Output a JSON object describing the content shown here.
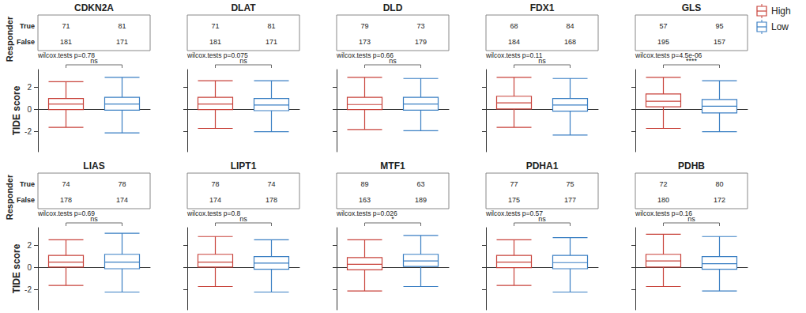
{
  "chart_data": [
    {
      "type": "boxplot",
      "title": "CDKN2A",
      "ylabel": "TIDE score",
      "ylim": [
        -3.8,
        3.6
      ],
      "yticks": [
        -2,
        0,
        2
      ],
      "grid": false,
      "tick_labels": "y",
      "series": [
        {
          "name": "High",
          "color": "#c8423a",
          "values": [
            -1.6,
            0.0,
            0.5,
            1.0,
            2.5
          ]
        },
        {
          "name": "Low",
          "color": "#3a7fc3",
          "values": [
            -2.1,
            -0.05,
            0.5,
            1.1,
            2.9
          ]
        }
      ],
      "responder": {
        "label": "Responder",
        "rows": [
          "True",
          "False"
        ],
        "counts": [
          [
            71,
            81
          ],
          [
            181,
            171
          ]
        ]
      },
      "test_label": "wilcox.tests p=0.78",
      "significance": "ns"
    },
    {
      "type": "boxplot",
      "title": "DLAT",
      "ylim": [
        -3.8,
        3.6
      ],
      "yticks": [
        -2,
        0,
        2
      ],
      "grid": false,
      "tick_labels": false,
      "series": [
        {
          "name": "High",
          "color": "#c8423a",
          "values": [
            -1.7,
            0.0,
            0.5,
            1.1,
            2.6
          ]
        },
        {
          "name": "Low",
          "color": "#3a7fc3",
          "values": [
            -2.0,
            -0.1,
            0.4,
            1.0,
            2.6
          ]
        }
      ],
      "responder": {
        "counts": [
          [
            71,
            81
          ],
          [
            181,
            171
          ]
        ]
      },
      "test_label": "wilcox.tests p=0.075",
      "significance": "ns"
    },
    {
      "type": "boxplot",
      "title": "DLD",
      "ylim": [
        -3.8,
        3.6
      ],
      "yticks": [
        -2,
        0,
        2
      ],
      "grid": false,
      "tick_labels": false,
      "series": [
        {
          "name": "High",
          "color": "#c8423a",
          "values": [
            -1.8,
            0.0,
            0.45,
            1.1,
            2.9
          ]
        },
        {
          "name": "Low",
          "color": "#3a7fc3",
          "values": [
            -1.9,
            -0.05,
            0.5,
            1.1,
            2.8
          ]
        }
      ],
      "responder": {
        "counts": [
          [
            79,
            73
          ],
          [
            173,
            179
          ]
        ]
      },
      "test_label": "wilcox.tests p=0.66",
      "significance": "ns"
    },
    {
      "type": "boxplot",
      "title": "FDX1",
      "ylim": [
        -3.8,
        3.6
      ],
      "yticks": [
        -2,
        0,
        2
      ],
      "grid": false,
      "tick_labels": false,
      "series": [
        {
          "name": "High",
          "color": "#c8423a",
          "values": [
            -1.6,
            0.05,
            0.6,
            1.2,
            2.9
          ]
        },
        {
          "name": "Low",
          "color": "#3a7fc3",
          "values": [
            -2.3,
            -0.15,
            0.4,
            1.0,
            2.8
          ]
        }
      ],
      "responder": {
        "counts": [
          [
            68,
            84
          ],
          [
            184,
            168
          ]
        ]
      },
      "test_label": "wilcox.tests p=0.11",
      "significance": "ns"
    },
    {
      "type": "boxplot",
      "title": "GLS",
      "ylim": [
        -3.8,
        3.6
      ],
      "yticks": [
        -2,
        0,
        2
      ],
      "grid": false,
      "tick_labels": false,
      "legend": "topright",
      "series": [
        {
          "name": "High",
          "color": "#c8423a",
          "values": [
            -1.7,
            0.25,
            0.75,
            1.4,
            2.9
          ]
        },
        {
          "name": "Low",
          "color": "#3a7fc3",
          "values": [
            -2.0,
            -0.3,
            0.3,
            0.9,
            2.6
          ]
        }
      ],
      "responder": {
        "counts": [
          [
            57,
            95
          ],
          [
            195,
            157
          ]
        ]
      },
      "test_label": "wilcox.tests p=4.5e-06",
      "significance": "****"
    },
    {
      "type": "boxplot",
      "title": "LIAS",
      "ylabel": "TIDE score",
      "ylim": [
        -3.8,
        3.6
      ],
      "yticks": [
        -2,
        0,
        2
      ],
      "grid": false,
      "tick_labels": "y",
      "series": [
        {
          "name": "High",
          "color": "#c8423a",
          "values": [
            -1.6,
            0.05,
            0.5,
            1.1,
            2.5
          ]
        },
        {
          "name": "Low",
          "color": "#3a7fc3",
          "values": [
            -2.2,
            -0.1,
            0.5,
            1.2,
            3.1
          ]
        }
      ],
      "responder": {
        "label": "Responder",
        "rows": [
          "True",
          "False"
        ],
        "counts": [
          [
            74,
            78
          ],
          [
            178,
            174
          ]
        ]
      },
      "test_label": "wilcox.tests p=0.69",
      "significance": "ns"
    },
    {
      "type": "boxplot",
      "title": "LIPT1",
      "ylim": [
        -3.8,
        3.6
      ],
      "yticks": [
        -2,
        0,
        2
      ],
      "grid": false,
      "tick_labels": false,
      "series": [
        {
          "name": "High",
          "color": "#c8423a",
          "values": [
            -1.7,
            0.05,
            0.5,
            1.2,
            2.8
          ]
        },
        {
          "name": "Low",
          "color": "#3a7fc3",
          "values": [
            -2.2,
            -0.15,
            0.4,
            1.0,
            2.5
          ]
        }
      ],
      "responder": {
        "counts": [
          [
            78,
            74
          ],
          [
            174,
            178
          ]
        ]
      },
      "test_label": "wilcox.tests p=0.8",
      "significance": "ns"
    },
    {
      "type": "boxplot",
      "title": "MTF1",
      "ylim": [
        -3.8,
        3.6
      ],
      "yticks": [
        -2,
        0,
        2
      ],
      "grid": false,
      "tick_labels": false,
      "series": [
        {
          "name": "High",
          "color": "#c8423a",
          "values": [
            -2.1,
            -0.2,
            0.3,
            0.9,
            2.5
          ]
        },
        {
          "name": "Low",
          "color": "#3a7fc3",
          "values": [
            -1.7,
            0.1,
            0.6,
            1.2,
            2.9
          ]
        }
      ],
      "responder": {
        "counts": [
          [
            89,
            63
          ],
          [
            163,
            189
          ]
        ]
      },
      "test_label": "wilcox.tests p=0.026",
      "significance": "*"
    },
    {
      "type": "boxplot",
      "title": "PDHA1",
      "ylim": [
        -3.8,
        3.6
      ],
      "yticks": [
        -2,
        0,
        2
      ],
      "grid": false,
      "tick_labels": false,
      "series": [
        {
          "name": "High",
          "color": "#c8423a",
          "values": [
            -1.6,
            0.0,
            0.5,
            1.1,
            2.5
          ]
        },
        {
          "name": "Low",
          "color": "#3a7fc3",
          "values": [
            -2.2,
            -0.1,
            0.45,
            1.1,
            2.7
          ]
        }
      ],
      "responder": {
        "counts": [
          [
            77,
            75
          ],
          [
            175,
            177
          ]
        ]
      },
      "test_label": "wilcox.tests p=0.57",
      "significance": "ns"
    },
    {
      "type": "boxplot",
      "title": "PDHB",
      "ylim": [
        -3.8,
        3.6
      ],
      "yticks": [
        -2,
        0,
        2
      ],
      "grid": false,
      "tick_labels": false,
      "series": [
        {
          "name": "High",
          "color": "#c8423a",
          "values": [
            -1.7,
            0.05,
            0.6,
            1.2,
            3.0
          ]
        },
        {
          "name": "Low",
          "color": "#3a7fc3",
          "values": [
            -2.1,
            -0.15,
            0.35,
            1.0,
            2.8
          ]
        }
      ],
      "responder": {
        "counts": [
          [
            72,
            80
          ],
          [
            180,
            172
          ]
        ]
      },
      "test_label": "wilcox.tests p=0.16",
      "significance": "ns"
    }
  ]
}
